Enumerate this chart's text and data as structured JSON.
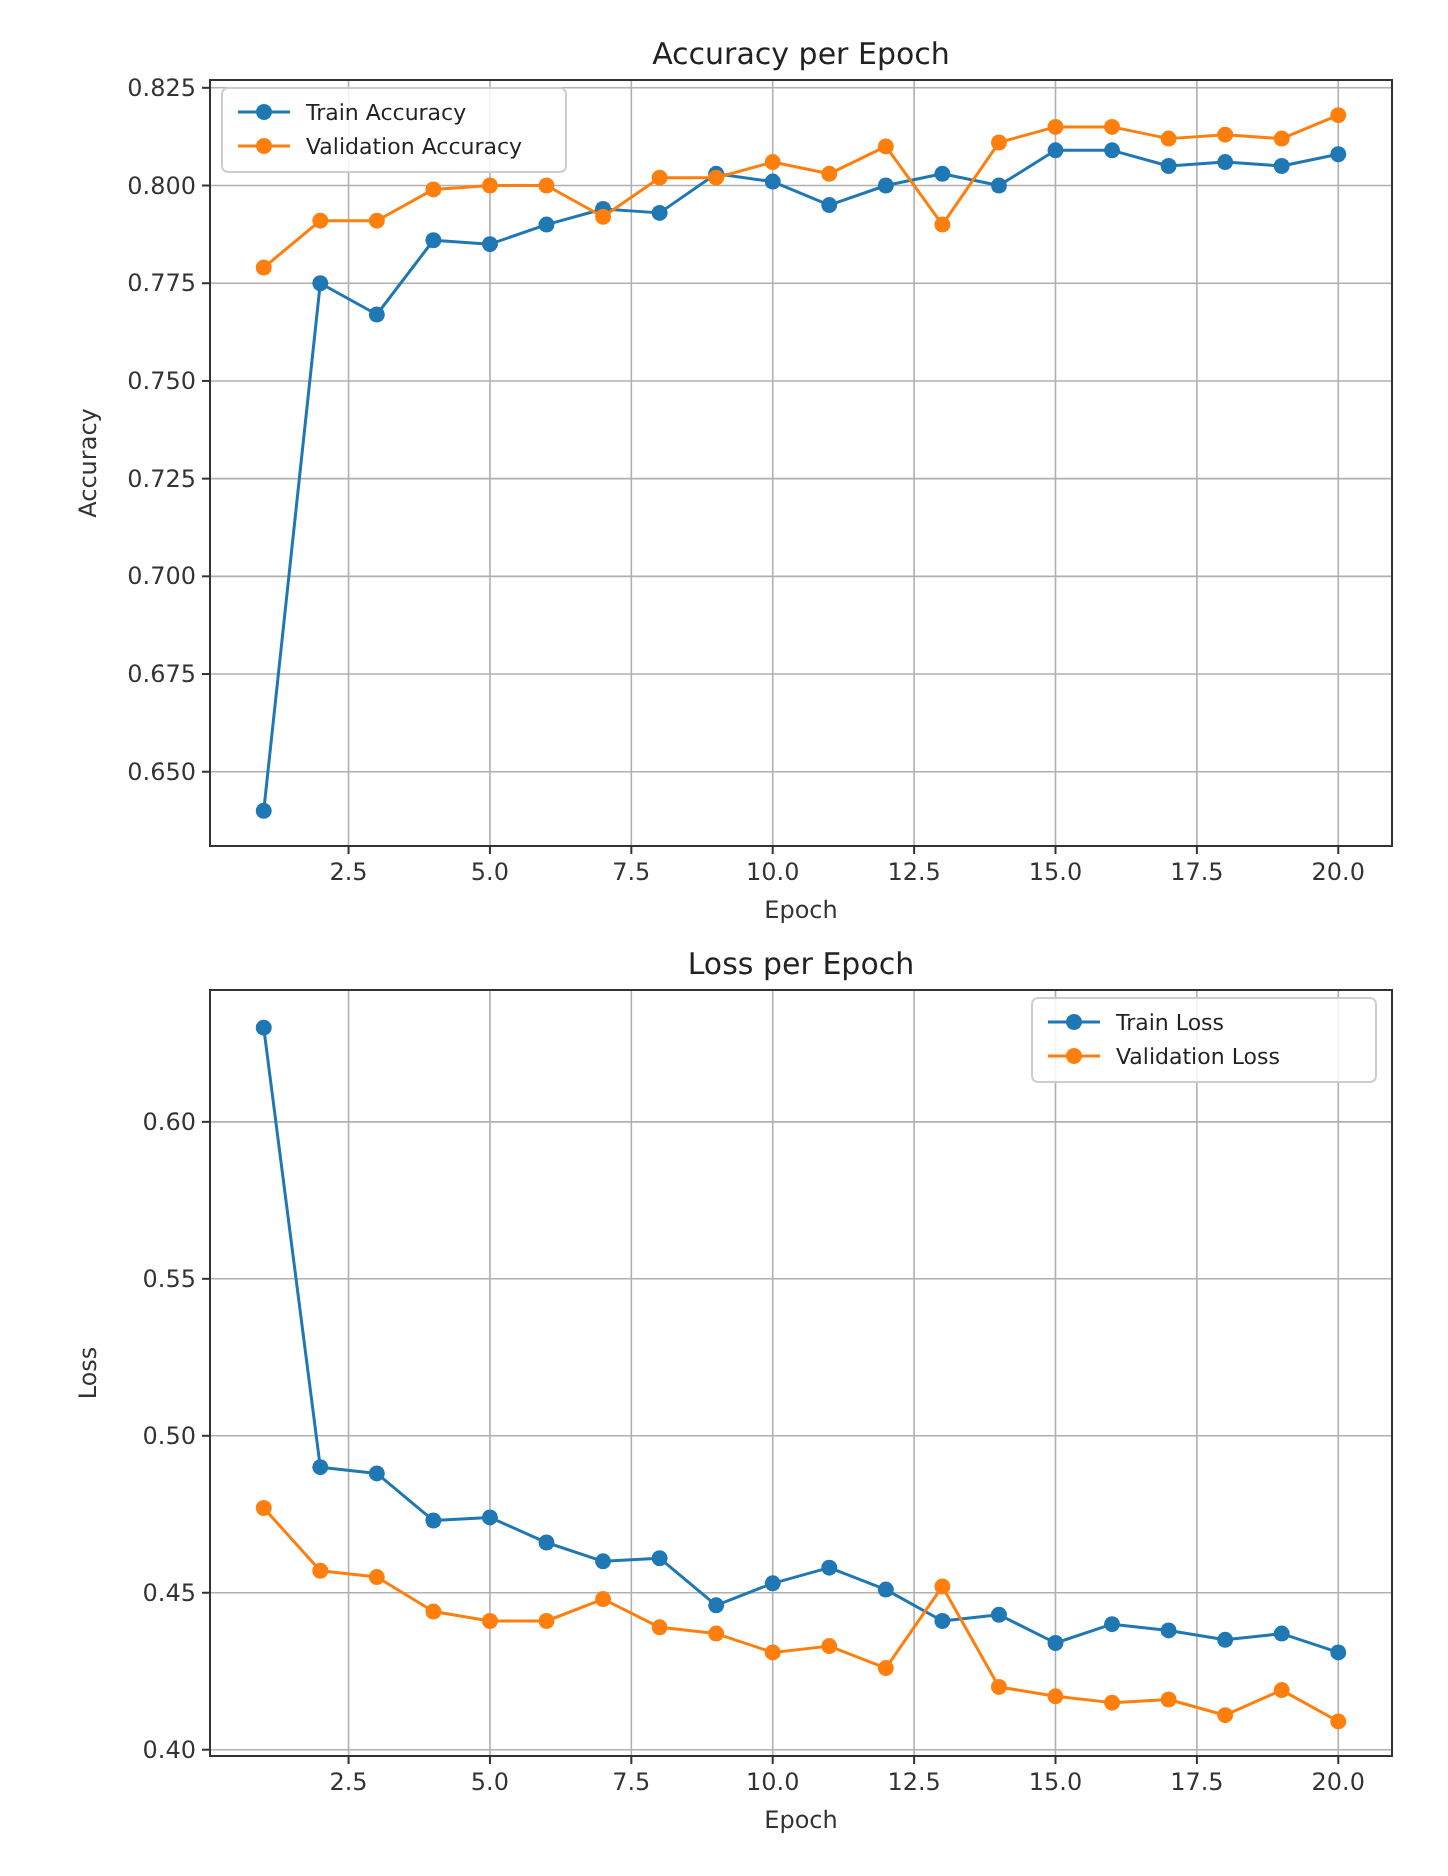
{
  "chart_data": [
    {
      "type": "line",
      "title": "Accuracy per Epoch",
      "xlabel": "Epoch",
      "ylabel": "Accuracy",
      "x": [
        1,
        2,
        3,
        4,
        5,
        6,
        7,
        8,
        9,
        10,
        11,
        12,
        13,
        14,
        15,
        16,
        17,
        18,
        19,
        20
      ],
      "series": [
        {
          "name": "Train Accuracy",
          "color": "#1f77b4",
          "values": [
            0.64,
            0.775,
            0.767,
            0.786,
            0.785,
            0.79,
            0.794,
            0.793,
            0.803,
            0.801,
            0.795,
            0.8,
            0.803,
            0.8,
            0.809,
            0.809,
            0.805,
            0.806,
            0.805,
            0.808
          ]
        },
        {
          "name": "Validation Accuracy",
          "color": "#ff7f0e",
          "values": [
            0.779,
            0.791,
            0.791,
            0.799,
            0.8,
            0.8,
            0.792,
            0.802,
            0.802,
            0.806,
            0.803,
            0.81,
            0.79,
            0.811,
            0.815,
            0.815,
            0.812,
            0.813,
            0.812,
            0.818
          ]
        }
      ],
      "xlim": [
        0.05,
        20.95
      ],
      "ylim": [
        0.631,
        0.827
      ],
      "xticks": [
        {
          "value": 2.5,
          "label": "2.5"
        },
        {
          "value": 5,
          "label": "5.0"
        },
        {
          "value": 7.5,
          "label": "7.5"
        },
        {
          "value": 10,
          "label": "10.0"
        },
        {
          "value": 12.5,
          "label": "12.5"
        },
        {
          "value": 15,
          "label": "15.0"
        },
        {
          "value": 17.5,
          "label": "17.5"
        },
        {
          "value": 20,
          "label": "20.0"
        }
      ],
      "yticks": [
        {
          "value": 0.65,
          "label": "0.650"
        },
        {
          "value": 0.675,
          "label": "0.675"
        },
        {
          "value": 0.7,
          "label": "0.700"
        },
        {
          "value": 0.725,
          "label": "0.725"
        },
        {
          "value": 0.75,
          "label": "0.750"
        },
        {
          "value": 0.775,
          "label": "0.775"
        },
        {
          "value": 0.8,
          "label": "0.800"
        },
        {
          "value": 0.825,
          "label": "0.825"
        }
      ],
      "grid": true,
      "legend": "top left",
      "marker": "circle",
      "line_style": "solid"
    },
    {
      "type": "line",
      "title": "Loss per Epoch",
      "xlabel": "Epoch",
      "ylabel": "Loss",
      "x": [
        1,
        2,
        3,
        4,
        5,
        6,
        7,
        8,
        9,
        10,
        11,
        12,
        13,
        14,
        15,
        16,
        17,
        18,
        19,
        20
      ],
      "series": [
        {
          "name": "Train Loss",
          "color": "#1f77b4",
          "values": [
            0.63,
            0.49,
            0.488,
            0.473,
            0.474,
            0.466,
            0.46,
            0.461,
            0.446,
            0.453,
            0.458,
            0.451,
            0.441,
            0.443,
            0.434,
            0.44,
            0.438,
            0.435,
            0.437,
            0.431
          ]
        },
        {
          "name": "Validation Loss",
          "color": "#ff7f0e",
          "values": [
            0.477,
            0.457,
            0.455,
            0.444,
            0.441,
            0.441,
            0.448,
            0.439,
            0.437,
            0.431,
            0.433,
            0.426,
            0.452,
            0.42,
            0.417,
            0.415,
            0.416,
            0.411,
            0.419,
            0.409
          ]
        }
      ],
      "xlim": [
        0.05,
        20.95
      ],
      "ylim": [
        0.398,
        0.642
      ],
      "xticks": [
        {
          "value": 2.5,
          "label": "2.5"
        },
        {
          "value": 5,
          "label": "5.0"
        },
        {
          "value": 7.5,
          "label": "7.5"
        },
        {
          "value": 10,
          "label": "10.0"
        },
        {
          "value": 12.5,
          "label": "12.5"
        },
        {
          "value": 15,
          "label": "15.0"
        },
        {
          "value": 17.5,
          "label": "17.5"
        },
        {
          "value": 20,
          "label": "20.0"
        }
      ],
      "yticks": [
        {
          "value": 0.4,
          "label": "0.40"
        },
        {
          "value": 0.45,
          "label": "0.45"
        },
        {
          "value": 0.5,
          "label": "0.50"
        },
        {
          "value": 0.55,
          "label": "0.55"
        },
        {
          "value": 0.6,
          "label": "0.60"
        }
      ],
      "grid": true,
      "legend": "top right",
      "marker": "circle",
      "line_style": "solid"
    }
  ]
}
